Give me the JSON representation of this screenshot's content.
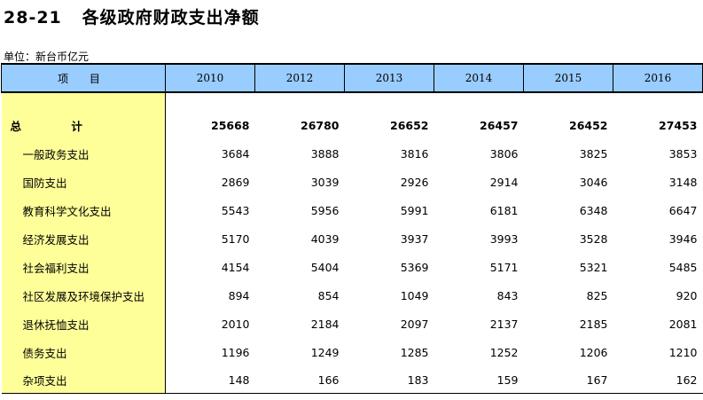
{
  "title": "28-21   各级政府财政支出净额",
  "unit": "单位：新台币亿元",
  "header": {
    "item_label": "项 目",
    "years": [
      "2010",
      "2012",
      "2013",
      "2014",
      "2015",
      "2016"
    ]
  },
  "total": {
    "label": "总 计",
    "values": [
      "25668",
      "26780",
      "26652",
      "26457",
      "26452",
      "27453"
    ]
  },
  "rows": [
    {
      "label": "一般政务支出",
      "values": [
        "3684",
        "3888",
        "3816",
        "3806",
        "3825",
        "3853"
      ]
    },
    {
      "label": "国防支出",
      "values": [
        "2869",
        "3039",
        "2926",
        "2914",
        "3046",
        "3148"
      ]
    },
    {
      "label": "教育科学文化支出",
      "values": [
        "5543",
        "5956",
        "5991",
        "6181",
        "6348",
        "6647"
      ]
    },
    {
      "label": "经济发展支出",
      "values": [
        "5170",
        "4039",
        "3937",
        "3993",
        "3528",
        "3946"
      ]
    },
    {
      "label": "社会福利支出",
      "values": [
        "4154",
        "5404",
        "5369",
        "5171",
        "5321",
        "5485"
      ]
    },
    {
      "label": "社区发展及环境保护支出",
      "values": [
        "894",
        "854",
        "1049",
        "843",
        "825",
        "920"
      ]
    },
    {
      "label": "退休抚恤支出",
      "values": [
        "2010",
        "2184",
        "2097",
        "2137",
        "2185",
        "2081"
      ]
    },
    {
      "label": "债务支出",
      "values": [
        "1196",
        "1249",
        "1285",
        "1252",
        "1206",
        "1210"
      ]
    },
    {
      "label": "杂项支出",
      "values": [
        "148",
        "166",
        "183",
        "159",
        "167",
        "162"
      ]
    }
  ]
}
